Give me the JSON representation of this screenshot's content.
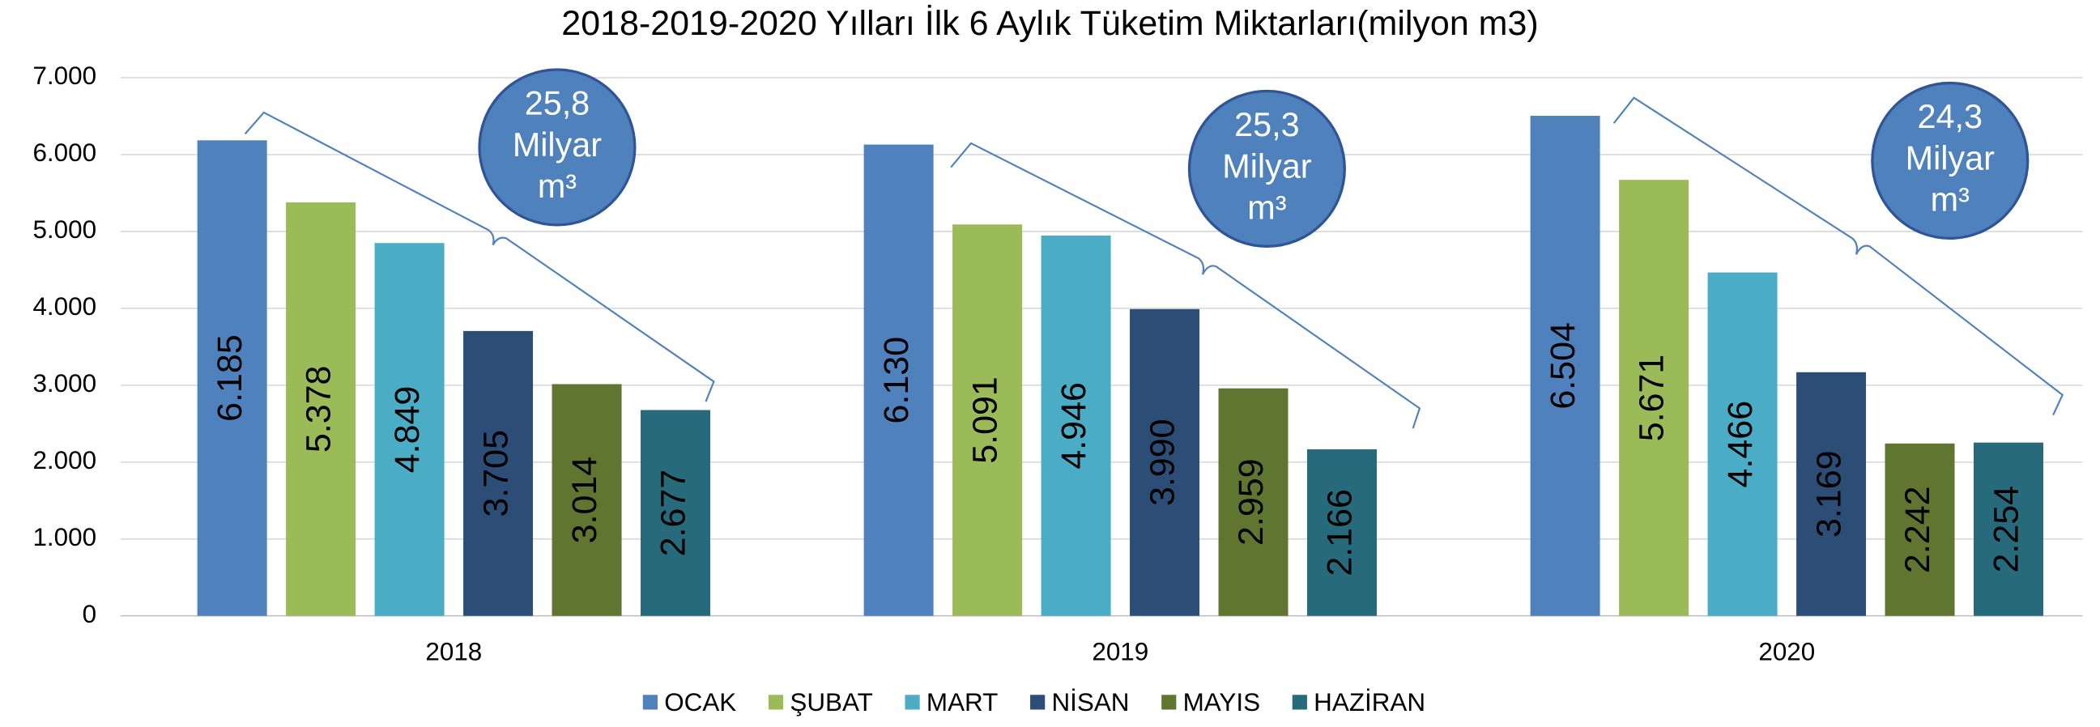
{
  "chart_data": {
    "type": "bar",
    "title": "2018-2019-2020 Yılları İlk 6 Aylık Tüketim Miktarları(milyon m3)",
    "categories": [
      "2018",
      "2019",
      "2020"
    ],
    "series": [
      {
        "name": "OCAK",
        "color": "#4f81bd",
        "values": [
          6185,
          6130,
          6504
        ],
        "value_labels": [
          "6.185",
          "6.130",
          "6.504"
        ]
      },
      {
        "name": "ŞUBAT",
        "color": "#9bbb59",
        "values": [
          5378,
          5091,
          5671
        ],
        "value_labels": [
          "5.378",
          "5.091",
          "5.671"
        ]
      },
      {
        "name": "MART",
        "color": "#4bacc6",
        "values": [
          4849,
          4946,
          4466
        ],
        "value_labels": [
          "4.849",
          "4.946",
          "4.466"
        ]
      },
      {
        "name": "NİSAN",
        "color": "#2c4d75",
        "values": [
          3705,
          3990,
          3169
        ],
        "value_labels": [
          "3.705",
          "3.990",
          "3.169"
        ]
      },
      {
        "name": "MAYIS",
        "color": "#5f7530",
        "values": [
          3014,
          2959,
          2242
        ],
        "value_labels": [
          "3.014",
          "2.959",
          "2.242"
        ]
      },
      {
        "name": "HAZİRAN",
        "color": "#276a7c",
        "values": [
          2677,
          2166,
          2254
        ],
        "value_labels": [
          "2.677",
          "2.166",
          "2.254"
        ]
      }
    ],
    "ylim": [
      0,
      7000
    ],
    "yticks": [
      0,
      {
        "value": 1000,
        "label": "1.000"
      },
      {
        "value": 2000,
        "label": "2.000"
      },
      {
        "value": 3000,
        "label": "3.000"
      },
      {
        "value": 4000,
        "label": "4.000"
      },
      {
        "value": 5000,
        "label": "5.000"
      },
      {
        "value": 6000,
        "label": "6.000"
      },
      {
        "value": 7000,
        "label": "7.000"
      }
    ],
    "grid": true,
    "legend": "bottom",
    "annotations": [
      {
        "lines": [
          "25,8",
          "Milyar",
          "m³"
        ]
      },
      {
        "lines": [
          "25,3",
          "Milyar",
          "m³"
        ]
      },
      {
        "lines": [
          "24,3",
          "Milyar",
          "m³"
        ]
      }
    ]
  }
}
